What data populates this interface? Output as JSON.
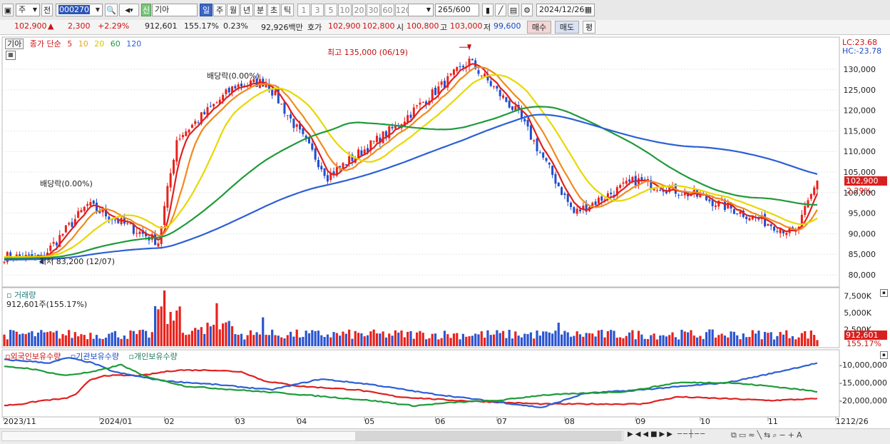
{
  "toolbar": {
    "period_prefix": "주",
    "jeon_label": "전",
    "code": "000270",
    "shin_label": "신",
    "stock_name": "기아",
    "periods": [
      "일",
      "주",
      "월",
      "년",
      "분",
      "초",
      "틱"
    ],
    "active_period": "일",
    "counts": [
      "1",
      "3",
      "5",
      "10",
      "20",
      "30",
      "60",
      "120"
    ],
    "range": "265/600",
    "date": "2024/12/26"
  },
  "quote": {
    "price": "102,900",
    "arrow": "▲",
    "change": "2,300",
    "pct": "+2.29%",
    "volume": "912,601",
    "vol_ratio": "155.17%",
    "turnover": "0.23%",
    "amount": "92,926백만",
    "ho_label": "호가",
    "ask": "102,900",
    "bid": "102,800",
    "open_label": "시",
    "open": "100,800",
    "high_label": "고",
    "high": "103,000",
    "low_label": "저",
    "low": "99,600",
    "buy_label": "매수",
    "sell_label": "매도",
    "eval_label": "평"
  },
  "legend": {
    "name": "기아",
    "title": "종가 단순",
    "mas": [
      "5",
      "10",
      "20",
      "60",
      "120"
    ],
    "ma_colors": [
      "#e02020",
      "#f08a1e",
      "#e8d800",
      "#1f9a3a",
      "#2c5fd6"
    ]
  },
  "price_pane": {
    "lc": "LC:23.68",
    "hc": "HC:-23.78",
    "y_ticks": [
      "130,000",
      "125,000",
      "120,000",
      "115,000",
      "110,000",
      "105,000",
      "100,000",
      "95,000",
      "90,000",
      "85,000",
      "80,000"
    ],
    "last_price": "102,900",
    "last_pct": "2.29%",
    "annotations": {
      "high": "최고 135,000 (06/19)",
      "low": "최저 83,200 (12/07)",
      "div1": "배당락(0.00%)",
      "div2": "배당락(0.00%)"
    }
  },
  "volume_pane": {
    "title": "거래량",
    "value": "912,601주(155.17%)",
    "y_ticks": [
      "7,500K",
      "5,000K",
      "2,500K"
    ],
    "last_value": "912,601",
    "last_pct": "155.17%"
  },
  "holding_pane": {
    "titles": [
      "외국인보유수량",
      "기관보유수량",
      "개인보유수량"
    ],
    "colors": [
      "#e02020",
      "#2c5fd6",
      "#1f9a3a"
    ],
    "y_ticks": [
      "-10,000,000",
      "-15,000,000",
      "-20,000,000"
    ]
  },
  "x_labels": [
    "2023/11",
    "2024/01",
    "02",
    "03",
    "04",
    "05",
    "06",
    "07",
    "08",
    "09",
    "10",
    "11",
    "12"
  ],
  "x_right_label": "12/26",
  "chart_data": [
    {
      "type": "candlestick",
      "title": "기아 종가 단순 5 10 20 60 120",
      "x": [
        "2023-11-20",
        "2023-12-07",
        "2023-12-28",
        "2024-01-29",
        "2024-02-07",
        "2024-03-04",
        "2024-03-18",
        "2024-04-15",
        "2024-05-16",
        "2024-06-19",
        "2024-07-11",
        "2024-08-05",
        "2024-09-02",
        "2024-10-02",
        "2024-11-14",
        "2024-12-26"
      ],
      "close": [
        84500,
        84000,
        97000,
        88000,
        113000,
        126000,
        127000,
        104000,
        116000,
        132000,
        119000,
        95000,
        103000,
        99000,
        90000,
        102900
      ],
      "ylim": [
        78000,
        137000
      ],
      "high_marker": {
        "date": "2024-06-19",
        "value": 135000
      },
      "low_marker": {
        "date": "2023-12-07",
        "value": 83200
      },
      "last": {
        "price": 102900,
        "open": 100800,
        "high": 103000,
        "low": 99600
      }
    },
    {
      "type": "bar",
      "title": "거래량",
      "last_value": 912601,
      "ylim": [
        0,
        8500000
      ]
    },
    {
      "type": "line",
      "series": [
        {
          "name": "외국인보유수량"
        },
        {
          "name": "기관보유수량"
        },
        {
          "name": "개인보유수량"
        }
      ],
      "ylim": [
        -22000000,
        -8000000
      ]
    }
  ]
}
